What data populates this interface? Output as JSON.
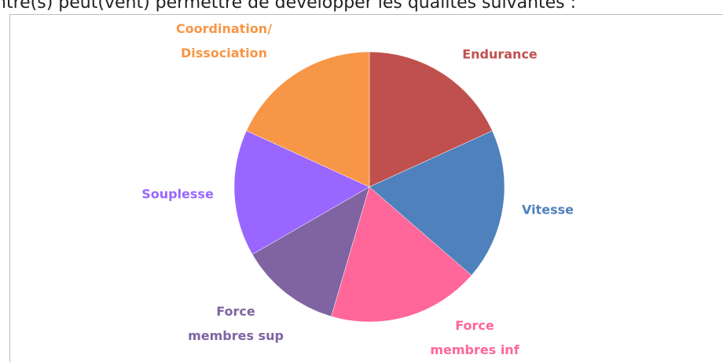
{
  "chart_data": {
    "type": "pie",
    "title": "ntre(s) peut(vent) permettre de développer les qualités suivantes :",
    "categories": [
      "Endurance",
      "Vitesse",
      "Force membres inf",
      "Force membres sup",
      "Souplesse",
      "Coordination/ Dissociation"
    ],
    "values": [
      18,
      18,
      18,
      12,
      15,
      18
    ],
    "colors": [
      "#c0504d",
      "#4f81bd",
      "#ff6699",
      "#8064a2",
      "#9966ff",
      "#f79646"
    ]
  }
}
